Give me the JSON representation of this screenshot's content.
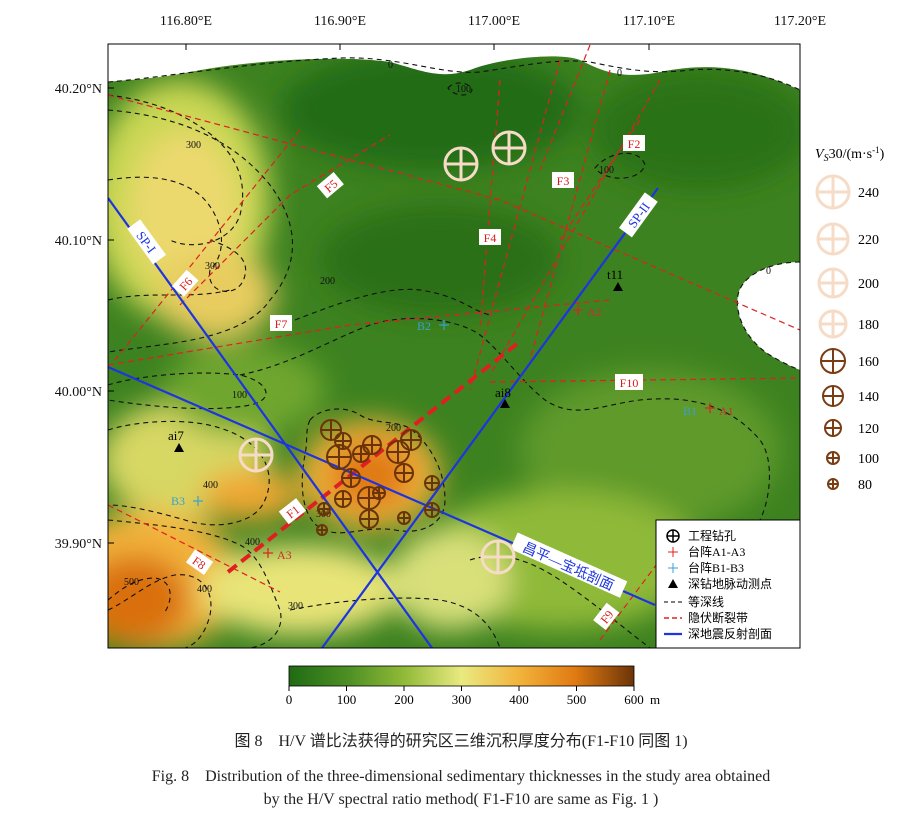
{
  "axes": {
    "lon_ticks": [
      "116.80°E",
      "116.90°E",
      "117.00°E",
      "117.10°E",
      "117.20°E"
    ],
    "lat_ticks": [
      "40.20°N",
      "40.10°N",
      "40.00°N",
      "39.90°N"
    ]
  },
  "contour_labels": [
    "0",
    "0",
    "0",
    "100",
    "100",
    "100",
    "200",
    "200",
    "300",
    "300",
    "300",
    "300",
    "400",
    "400",
    "400",
    "500",
    "100",
    "200"
  ],
  "faults": [
    "F1",
    "F2",
    "F3",
    "F4",
    "F5",
    "F6",
    "F7",
    "F8",
    "F9",
    "F10"
  ],
  "profiles": {
    "sp1": "SP-I",
    "sp2": "SP-II",
    "cb": "昌平—宝坻剖面"
  },
  "arrays": {
    "A1": "A1",
    "A2": "A2",
    "A3": "A3",
    "B1": "B1",
    "B2": "B2",
    "B3": "B3"
  },
  "stations": [
    "t11",
    "ai8",
    "ai7"
  ],
  "vs_legend": {
    "title_pre": "V",
    "title_sub": "S",
    "title_post": "30/(m·s",
    "title_sup": "-1",
    "title_end": ")",
    "values": [
      "240",
      "220",
      "200",
      "180",
      "160",
      "140",
      "120",
      "100",
      "80"
    ]
  },
  "legend": {
    "items": [
      "工程钻孔",
      "台阵A1-A3",
      "台阵B1-B3",
      "深钻地脉动测点",
      "等深线",
      "隐伏断裂带",
      "深地震反射剖面"
    ]
  },
  "colorbar": {
    "ticks": [
      "0",
      "100",
      "200",
      "300",
      "400",
      "500",
      "600"
    ],
    "unit": "m",
    "colors": [
      "#1f6a14",
      "#4d8f24",
      "#8fb937",
      "#e9ea80",
      "#f2b23a",
      "#e07a12",
      "#6b3408"
    ]
  },
  "caption": {
    "zh": "图 8　H/V 谱比法获得的研究区三维沉积厚度分布(F1-F10 同图 1)",
    "en_line1": "Fig. 8　Distribution of the three-dimensional sedimentary thicknesses in the study area obtained",
    "en_line2": "by the H/V spectral ratio method( F1-F10 are same as Fig. 1 )"
  }
}
